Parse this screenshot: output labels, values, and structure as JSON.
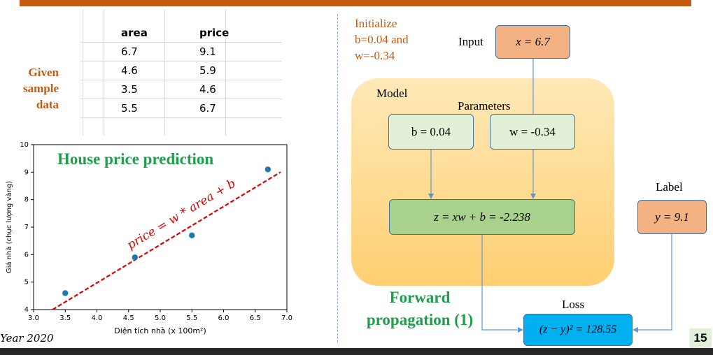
{
  "slide": {
    "number": "15",
    "footer_year": "Year 2020"
  },
  "left": {
    "given_label": "Given sample data",
    "table": {
      "headers": [
        "area",
        "price"
      ],
      "rows": [
        [
          "6.7",
          "9.1"
        ],
        [
          "4.6",
          "5.9"
        ],
        [
          "3.5",
          "4.6"
        ],
        [
          "5.5",
          "6.7"
        ]
      ]
    }
  },
  "chart_data": {
    "type": "scatter",
    "title": "House price prediction",
    "xlabel": "Diện tích nhà (x 100m²)",
    "ylabel": "Giá nhà (chục lượng vàng)",
    "xlim": [
      3.0,
      7.0
    ],
    "ylim": [
      4,
      10
    ],
    "xticks": [
      "3.0",
      "3.5",
      "4.0",
      "4.5",
      "5.0",
      "5.5",
      "6.0",
      "6.5",
      "7.0"
    ],
    "yticks": [
      "4",
      "5",
      "6",
      "7",
      "8",
      "9",
      "10"
    ],
    "points": [
      {
        "x": 6.7,
        "y": 9.1
      },
      {
        "x": 4.6,
        "y": 5.9
      },
      {
        "x": 3.5,
        "y": 4.6
      },
      {
        "x": 5.5,
        "y": 6.7
      }
    ],
    "line": {
      "label": "price = w * area + b",
      "x": [
        3.3,
        6.9
      ],
      "y": [
        4.0,
        9.0
      ],
      "color": "#e00000",
      "style": "dashed"
    },
    "point_color": "#1f77b4"
  },
  "diagram": {
    "init_text": "Initialize b=0.04 and w=-0.34",
    "input_label": "Input",
    "input_value": "x = 6.7",
    "model_label": "Model",
    "parameters_label": "Parameters",
    "b_value": "b = 0.04",
    "w_value": "w = -0.34",
    "z_value": "z = xw + b = -2.238",
    "label_label": "Label",
    "y_value": "y = 9.1",
    "loss_label": "Loss",
    "loss_value": "(z − y)² = 128.55",
    "forward_title": "Forward propagation (1)",
    "colors": {
      "orange_box": "#f4b183",
      "green_light": "#e2f0d9",
      "green_mid": "#a9d18e",
      "loss_blue": "#00b0f0",
      "model_bg": "#ffd27f"
    }
  }
}
